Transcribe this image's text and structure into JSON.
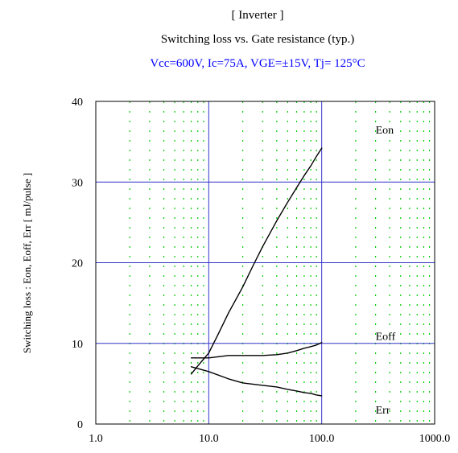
{
  "chart_data": {
    "type": "line",
    "title": "[ Inverter ]",
    "subtitle": "Switching loss  vs.  Gate resistance (typ.)",
    "conditions": "Vcc=600V, Ic=75A, VGE=±15V, Tj= 125°C",
    "xlabel": "",
    "ylabel": "Switching loss  :  Eon, Eoff, Err  [  mJ/pulse ]",
    "xscale": "log",
    "xlim": [
      1,
      1000
    ],
    "ylim": [
      0,
      40
    ],
    "x_ticks": [
      "1.0",
      "10.0",
      "100.0",
      "1000.0"
    ],
    "x_tick_values": [
      1,
      10,
      100,
      1000
    ],
    "y_ticks": [
      "0",
      "10",
      "20",
      "30",
      "40"
    ],
    "y_tick_values": [
      0,
      10,
      20,
      30,
      40
    ],
    "grid": true,
    "colors": {
      "major_grid": "#3333cc",
      "minor_grid": "#00cc00",
      "curve": "#000000",
      "conditions_text": "#0000ff"
    },
    "series": [
      {
        "name": "Eon",
        "x": [
          7,
          8,
          10,
          12,
          15,
          20,
          25,
          30,
          40,
          50,
          60,
          70,
          80,
          90,
          100
        ],
        "y": [
          6.2,
          7.2,
          8.8,
          11,
          13.8,
          17,
          19.8,
          22,
          25.2,
          27.5,
          29.3,
          30.8,
          32,
          33.2,
          34.2
        ]
      },
      {
        "name": "Eoff",
        "x": [
          7,
          10,
          15,
          20,
          30,
          40,
          50,
          60,
          70,
          80,
          90,
          100
        ],
        "y": [
          8.2,
          8.2,
          8.5,
          8.5,
          8.5,
          8.6,
          8.8,
          9.1,
          9.4,
          9.6,
          9.8,
          10.1
        ]
      },
      {
        "name": "Err",
        "x": [
          7,
          10,
          15,
          20,
          30,
          40,
          50,
          60,
          70,
          80,
          90,
          100
        ],
        "y": [
          7.1,
          6.5,
          5.6,
          5.1,
          4.8,
          4.6,
          4.3,
          4.1,
          3.9,
          3.8,
          3.6,
          3.5
        ]
      }
    ],
    "series_label_positions": {
      "Eon": [
        300,
        36
      ],
      "Eoff": [
        300,
        10.4
      ],
      "Err": [
        300,
        1.3
      ]
    }
  }
}
